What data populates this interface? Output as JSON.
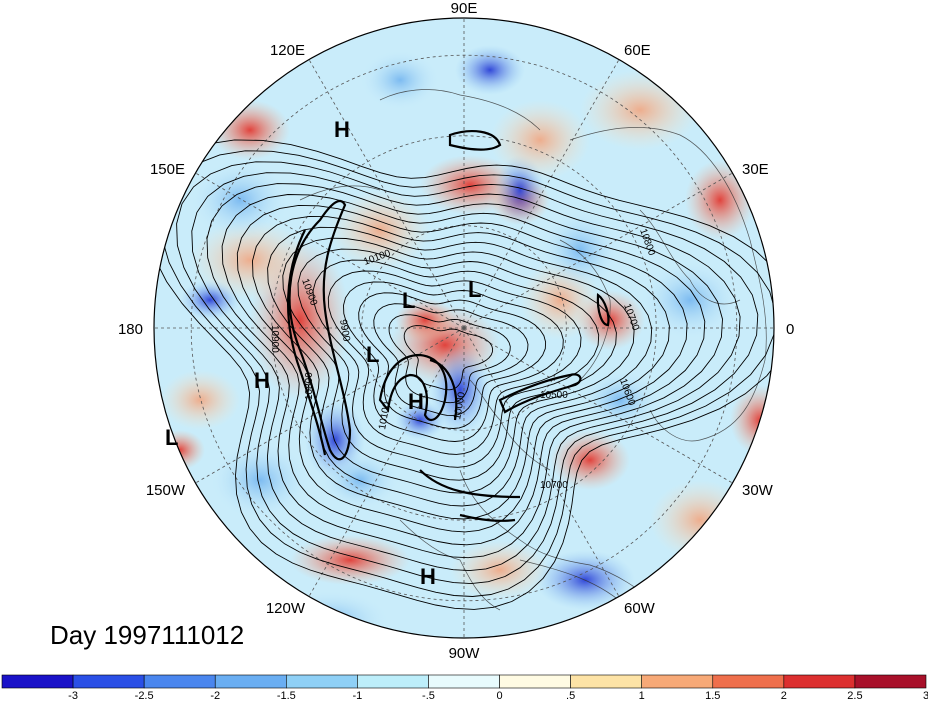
{
  "map": {
    "projection": "north-polar-stereographic",
    "longitude_labels": [
      "90E",
      "60E",
      "30E",
      "0",
      "30W",
      "60W",
      "90W",
      "120W",
      "150W",
      "180",
      "150E",
      "120E"
    ],
    "pressure_systems": [
      {
        "type": "H"
      },
      {
        "type": "L"
      },
      {
        "type": "L"
      },
      {
        "type": "L"
      },
      {
        "type": "H"
      },
      {
        "type": "H"
      },
      {
        "type": "L"
      },
      {
        "type": "H"
      }
    ],
    "contour_labels": [
      "10800",
      "10700",
      "10600",
      "10500",
      "10700",
      "10900",
      "10800",
      "10900",
      "10100",
      "10000",
      "10100",
      "9900"
    ]
  },
  "day_label": "Day 1997111012",
  "colorbar": {
    "tick_labels": [
      "-3",
      "-2.5",
      "-2",
      "-1.5",
      "-1",
      "-.5",
      "0",
      ".5",
      "1",
      "1.5",
      "2",
      "2.5",
      "3"
    ],
    "colors": [
      "#1a12c8",
      "#2a4fe6",
      "#4a86ee",
      "#6aaef2",
      "#8fd0f6",
      "#bdeefa",
      "#e8fbfd",
      "#fffbe3",
      "#fde3a6",
      "#f7a977",
      "#ef6f4c",
      "#dc2f2f",
      "#a8102a"
    ]
  }
}
